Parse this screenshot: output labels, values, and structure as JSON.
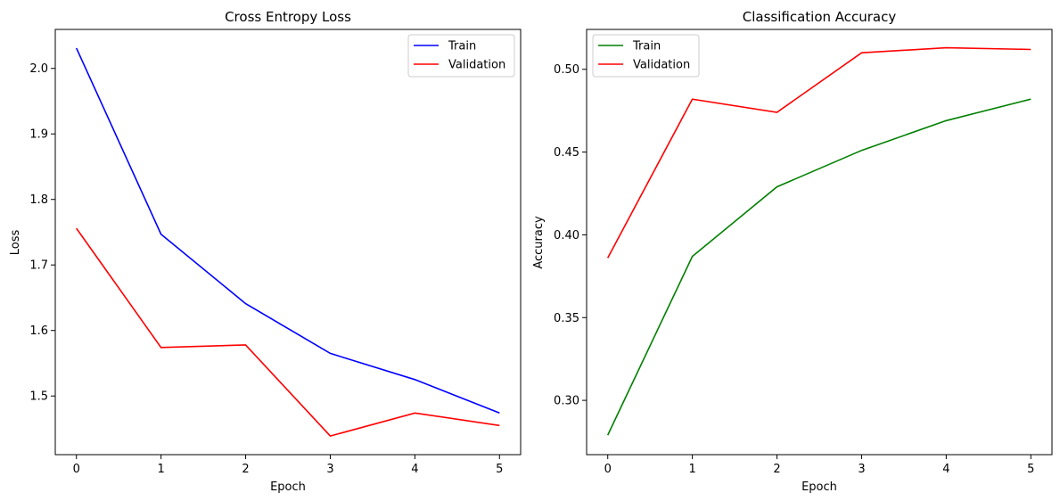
{
  "chart_data": [
    {
      "type": "line",
      "title": "Cross Entropy Loss",
      "xlabel": "Epoch",
      "ylabel": "Loss",
      "x": [
        0,
        1,
        2,
        3,
        4,
        5
      ],
      "xticks": [
        "0",
        "1",
        "2",
        "3",
        "4",
        "5"
      ],
      "yticks": [
        "1.5",
        "1.6",
        "1.7",
        "1.8",
        "1.9",
        "2.0"
      ],
      "ytick_values": [
        1.5,
        1.6,
        1.7,
        1.8,
        1.9,
        2.0
      ],
      "xlim": [
        -0.25,
        5.25
      ],
      "ylim": [
        1.4105,
        2.0595
      ],
      "grid": false,
      "legend_position": "top-right",
      "series": [
        {
          "name": "Train",
          "color": "#0000ff",
          "values": [
            2.031,
            1.747,
            1.641,
            1.565,
            1.525,
            1.474
          ]
        },
        {
          "name": "Validation",
          "color": "#ff0000",
          "values": [
            1.756,
            1.574,
            1.578,
            1.439,
            1.474,
            1.455
          ]
        }
      ]
    },
    {
      "type": "line",
      "title": "Classification Accuracy",
      "xlabel": "Epoch",
      "ylabel": "Accuracy",
      "x": [
        0,
        1,
        2,
        3,
        4,
        5
      ],
      "xticks": [
        "0",
        "1",
        "2",
        "3",
        "4",
        "5"
      ],
      "yticks": [
        "0.30",
        "0.35",
        "0.40",
        "0.45",
        "0.50"
      ],
      "ytick_values": [
        0.3,
        0.35,
        0.4,
        0.45,
        0.5
      ],
      "xlim": [
        -0.25,
        5.25
      ],
      "ylim": [
        0.2672,
        0.5241
      ],
      "grid": false,
      "legend_position": "top-left",
      "series": [
        {
          "name": "Train",
          "color": "#008000",
          "values": [
            0.279,
            0.387,
            0.429,
            0.451,
            0.469,
            0.482
          ]
        },
        {
          "name": "Validation",
          "color": "#ff0000",
          "values": [
            0.386,
            0.482,
            0.474,
            0.51,
            0.513,
            0.512
          ]
        }
      ]
    }
  ]
}
